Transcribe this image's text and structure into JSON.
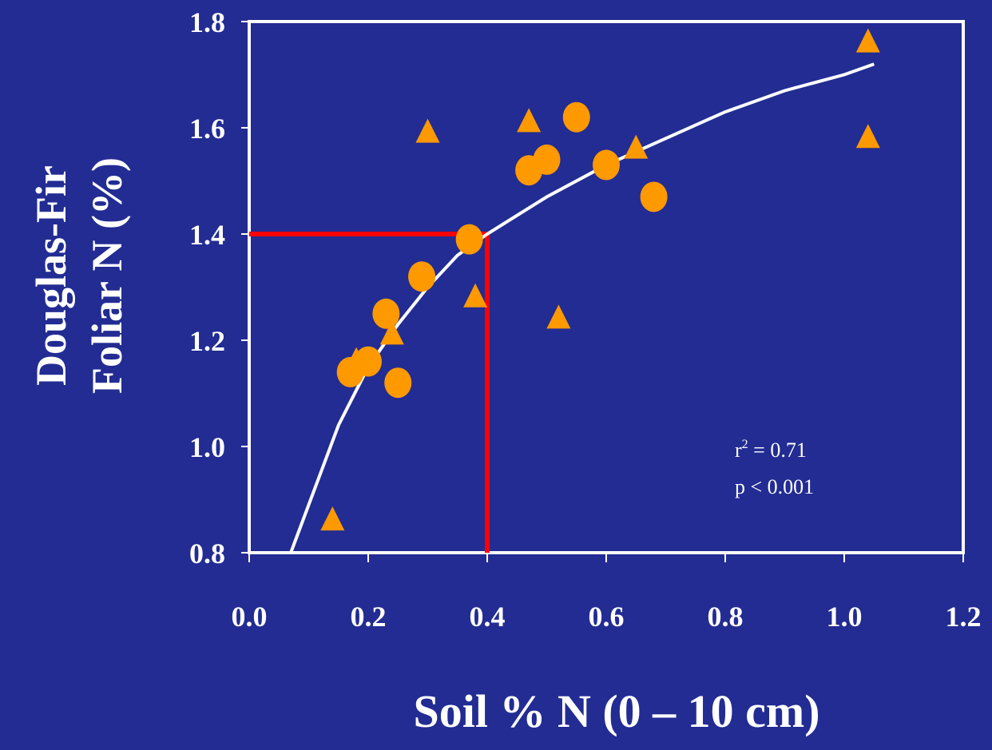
{
  "colors": {
    "background": "#222c93",
    "frame": "#ffffff",
    "marker": "#ff9900",
    "fit_line": "#ffffff",
    "reference_line": "#ff0000",
    "text": "#ffffff"
  },
  "chart_data": {
    "type": "scatter",
    "xlabel": "Soil % N (0 – 10 cm)",
    "ylabel_lines": [
      "Douglas-Fir",
      "Foliar N (%)"
    ],
    "xlim": [
      0.0,
      1.2
    ],
    "ylim": [
      0.8,
      1.8
    ],
    "x_ticks": [
      "0.0",
      "0.2",
      "0.4",
      "0.6",
      "0.8",
      "1.0",
      "1.2"
    ],
    "y_ticks": [
      "0.8",
      "1.0",
      "1.2",
      "1.4",
      "1.6",
      "1.8"
    ],
    "grid": false,
    "legend": "none",
    "series": [
      {
        "marker": "circle",
        "points": [
          {
            "x": 0.17,
            "y": 1.14
          },
          {
            "x": 0.2,
            "y": 1.16
          },
          {
            "x": 0.23,
            "y": 1.25
          },
          {
            "x": 0.25,
            "y": 1.12
          },
          {
            "x": 0.29,
            "y": 1.32
          },
          {
            "x": 0.37,
            "y": 1.39
          },
          {
            "x": 0.47,
            "y": 1.52
          },
          {
            "x": 0.5,
            "y": 1.54
          },
          {
            "x": 0.55,
            "y": 1.62
          },
          {
            "x": 0.6,
            "y": 1.53
          },
          {
            "x": 0.68,
            "y": 1.47
          }
        ]
      },
      {
        "marker": "triangle",
        "points": [
          {
            "x": 0.14,
            "y": 0.86
          },
          {
            "x": 0.18,
            "y": 1.16
          },
          {
            "x": 0.24,
            "y": 1.21
          },
          {
            "x": 0.3,
            "y": 1.59
          },
          {
            "x": 0.38,
            "y": 1.28
          },
          {
            "x": 0.47,
            "y": 1.61
          },
          {
            "x": 0.52,
            "y": 1.24
          },
          {
            "x": 0.65,
            "y": 1.56
          },
          {
            "x": 1.04,
            "y": 1.76
          },
          {
            "x": 1.04,
            "y": 1.58
          }
        ]
      }
    ],
    "fit_curve": {
      "type": "logarithmic",
      "points": [
        {
          "x": 0.07,
          "y": 0.8
        },
        {
          "x": 0.1,
          "y": 0.89
        },
        {
          "x": 0.15,
          "y": 1.04
        },
        {
          "x": 0.2,
          "y": 1.15
        },
        {
          "x": 0.25,
          "y": 1.23
        },
        {
          "x": 0.3,
          "y": 1.3
        },
        {
          "x": 0.35,
          "y": 1.36
        },
        {
          "x": 0.4,
          "y": 1.4
        },
        {
          "x": 0.5,
          "y": 1.47
        },
        {
          "x": 0.6,
          "y": 1.53
        },
        {
          "x": 0.7,
          "y": 1.58
        },
        {
          "x": 0.8,
          "y": 1.63
        },
        {
          "x": 0.9,
          "y": 1.67
        },
        {
          "x": 1.0,
          "y": 1.7
        },
        {
          "x": 1.05,
          "y": 1.72
        }
      ]
    },
    "reference_lines": {
      "x": 0.4,
      "y": 1.4
    },
    "annotations": {
      "r2_label": "r",
      "r2_exp": "2",
      "r2_value": " = 0.71",
      "p_text": "p < 0.001"
    }
  }
}
